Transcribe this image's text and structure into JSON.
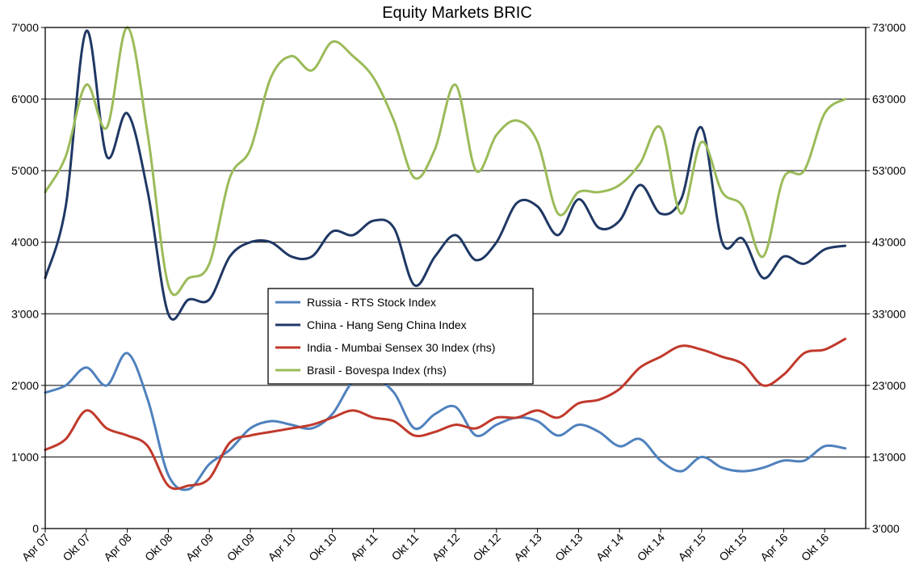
{
  "chart_data": {
    "type": "line",
    "title": "Equity Markets BRIC",
    "xlabel": "",
    "ylabel": "",
    "x_tick_labels": [
      "Apr 07",
      "Okt 07",
      "Apr 08",
      "Okt 08",
      "Apr 09",
      "Okt 09",
      "Apr 10",
      "Okt 10",
      "Apr 11",
      "Okt 11",
      "Apr 12",
      "Okt 12",
      "Apr 13",
      "Okt 13",
      "Apr 14",
      "Okt 14",
      "Apr 15",
      "Okt 15",
      "Apr 16",
      "Okt 16"
    ],
    "y_left": {
      "ylim": [
        0,
        7000
      ],
      "ticks": [
        "0",
        "1'000",
        "2'000",
        "3'000",
        "4'000",
        "5'000",
        "6'000",
        "7'000"
      ]
    },
    "y_right": {
      "ylim": [
        3000,
        73000
      ],
      "ticks": [
        "3'000",
        "13'000",
        "23'000",
        "33'000",
        "43'000",
        "53'000",
        "63'000",
        "73'000"
      ]
    },
    "grid": true,
    "legend_position": "center",
    "x": [
      "Apr 07",
      "Jul 07",
      "Okt 07",
      "Jan 08",
      "Apr 08",
      "Jul 08",
      "Okt 08",
      "Jan 09",
      "Apr 09",
      "Jul 09",
      "Okt 09",
      "Jan 10",
      "Apr 10",
      "Jul 10",
      "Okt 10",
      "Jan 11",
      "Apr 11",
      "Jul 11",
      "Okt 11",
      "Jan 12",
      "Apr 12",
      "Jul 12",
      "Okt 12",
      "Jan 13",
      "Apr 13",
      "Jul 13",
      "Okt 13",
      "Jan 14",
      "Apr 14",
      "Jul 14",
      "Okt 14",
      "Jan 15",
      "Apr 15",
      "Jul 15",
      "Okt 15",
      "Jan 16",
      "Apr 16",
      "Jul 16",
      "Okt 16",
      "Jan 17"
    ],
    "series": [
      {
        "name": "Russia - RTS Stock Index",
        "axis": "left",
        "color": "#4f81bd",
        "values": [
          1900,
          2000,
          2250,
          2000,
          2450,
          1800,
          750,
          550,
          900,
          1100,
          1400,
          1500,
          1450,
          1400,
          1600,
          2050,
          2100,
          1900,
          1400,
          1600,
          1700,
          1300,
          1450,
          1550,
          1500,
          1300,
          1450,
          1350,
          1150,
          1250,
          950,
          800,
          1000,
          850,
          800,
          850,
          950,
          950,
          1150,
          1120
        ]
      },
      {
        "name": "China - Hang Seng China Index",
        "axis": "left",
        "color": "#1f3864",
        "values": [
          3500,
          4500,
          6950,
          5200,
          5800,
          4700,
          3000,
          3200,
          3200,
          3800,
          4000,
          4000,
          3800,
          3800,
          4150,
          4100,
          4300,
          4200,
          3400,
          3800,
          4100,
          3750,
          4000,
          4550,
          4500,
          4100,
          4600,
          4200,
          4300,
          4800,
          4400,
          4600,
          5600,
          4000,
          4050,
          3500,
          3800,
          3700,
          3900,
          3950
        ]
      },
      {
        "name": "India - Mumbai Sensex 30 Index (rhs)",
        "axis": "right",
        "color": "#c0392b",
        "values": [
          14000,
          15500,
          19500,
          17000,
          16000,
          14500,
          9000,
          9000,
          10000,
          15000,
          16000,
          16500,
          17000,
          17500,
          18500,
          19500,
          18500,
          18000,
          16000,
          16500,
          17500,
          17000,
          18500,
          18500,
          19500,
          18500,
          20500,
          21000,
          22500,
          25500,
          27000,
          28500,
          28000,
          27000,
          26000,
          23000,
          24500,
          27500,
          28000,
          29500
        ]
      },
      {
        "name": "Brasil - Bovespa Index (rhs)",
        "axis": "right",
        "color": "#9bbb59",
        "values": [
          50000,
          55000,
          65000,
          59000,
          73000,
          58000,
          37000,
          38000,
          40000,
          52000,
          56000,
          66000,
          69000,
          67000,
          71000,
          69000,
          66000,
          60000,
          52000,
          56000,
          65000,
          53000,
          58000,
          60000,
          57000,
          47000,
          50000,
          50000,
          51000,
          54000,
          59000,
          47000,
          57000,
          50000,
          48000,
          41000,
          52000,
          53000,
          61000,
          63000
        ]
      }
    ]
  }
}
